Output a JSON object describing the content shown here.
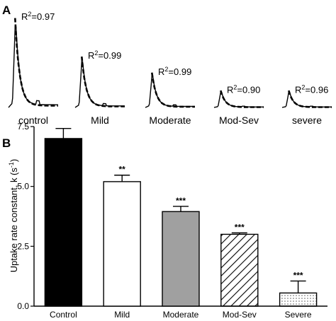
{
  "chart_data": [
    {
      "panel": "A",
      "type": "line",
      "traces": [
        {
          "label": "control",
          "r2_text": "R",
          "r2_sup": "2",
          "r2_value": "=0.97",
          "peak": 1.0
        },
        {
          "label": "Mild",
          "r2_text": "R",
          "r2_sup": "2",
          "r2_value": "=0.99",
          "peak": 0.57
        },
        {
          "label": "Moderate",
          "r2_text": "R",
          "r2_sup": "2",
          "r2_value": "=0.99",
          "peak": 0.39
        },
        {
          "label": "Mod-Sev",
          "r2_text": "R",
          "r2_sup": "2",
          "r2_value": "=0.90",
          "peak": 0.19
        },
        {
          "label": "severe",
          "r2_text": "R",
          "r2_sup": "2",
          "r2_value": "=0.96",
          "peak": 0.19
        }
      ],
      "series": [
        {
          "style": "solid"
        },
        {
          "style": "dashed"
        }
      ]
    },
    {
      "panel": "B",
      "type": "bar",
      "categories": [
        "Control",
        "Mild",
        "Moderate",
        "Mod-Sev",
        "Severe"
      ],
      "values": [
        7.0,
        5.2,
        3.95,
        3.0,
        0.55
      ],
      "errors": [
        0.42,
        0.27,
        0.22,
        0.06,
        0.5
      ],
      "significance": [
        "",
        "**",
        "***",
        "***",
        "***"
      ],
      "fills": [
        "black",
        "white",
        "gray",
        "hatched",
        "dotted"
      ],
      "colors": {
        "black": "#000000",
        "white": "#ffffff",
        "gray": "#a0a0a0"
      },
      "ylabel_main": "Uptake rate constant, k (s",
      "ylabel_sup": "-1",
      "ylabel_end": ")",
      "ylim": [
        0,
        7.5
      ],
      "yticks": [
        0.0,
        2.5,
        5.0,
        7.5
      ],
      "ytick_labels": [
        "0.0",
        "2.5",
        "5.0",
        "7.5"
      ]
    }
  ]
}
